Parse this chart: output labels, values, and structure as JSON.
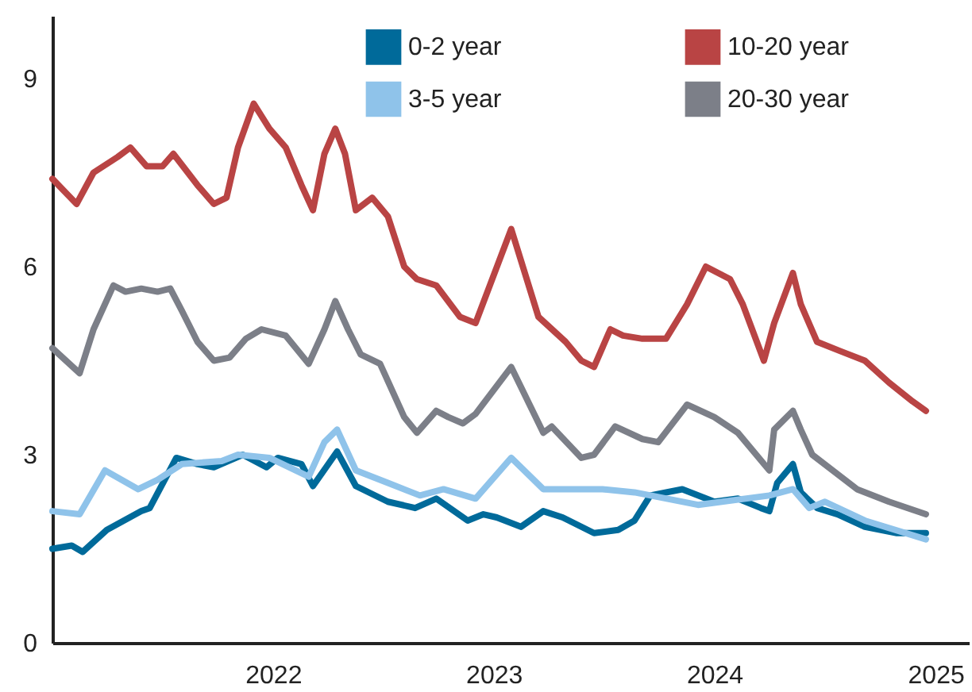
{
  "chart_data": {
    "type": "line",
    "xlim": [
      "2021-01-01",
      "2025-02-25"
    ],
    "xticks": [
      "2022",
      "2023",
      "2024",
      "2025"
    ],
    "ylim": [
      0,
      10
    ],
    "yticks": [
      0,
      3,
      6,
      9
    ],
    "grid": false,
    "legend": "top right",
    "marker": "none",
    "line_style": "solid",
    "series": [
      {
        "name": "0-2 year",
        "color": "#006a9a",
        "x": [
          "2021-01-01",
          "2021-02-02",
          "2021-02-20",
          "2021-04-01",
          "2021-05-28",
          "2021-06-11",
          "2021-07-25",
          "2021-08-29",
          "2021-09-25",
          "2021-11-12",
          "2021-12-21",
          "2022-01-09",
          "2022-02-17",
          "2022-03-08",
          "2022-04-17",
          "2022-05-18",
          "2022-07-10",
          "2022-08-24",
          "2022-09-28",
          "2022-11-19",
          "2022-12-15",
          "2023-01-06",
          "2023-02-15",
          "2023-03-24",
          "2023-04-25",
          "2023-06-16",
          "2023-07-26",
          "2023-08-22",
          "2023-09-17",
          "2023-11-09",
          "2024-01-01",
          "2024-02-09",
          "2024-03-18",
          "2024-04-01",
          "2024-04-14",
          "2024-05-10",
          "2024-05-23",
          "2024-06-19",
          "2024-07-23",
          "2024-09-06",
          "2024-10-29",
          "2024-12-16"
        ],
        "values": [
          1.5,
          1.55,
          1.45,
          1.8,
          2.1,
          2.15,
          2.95,
          2.85,
          2.8,
          3.0,
          2.8,
          2.95,
          2.85,
          2.5,
          3.05,
          2.5,
          2.25,
          2.15,
          2.3,
          1.95,
          2.05,
          2.0,
          1.85,
          2.1,
          2.0,
          1.75,
          1.8,
          1.95,
          2.35,
          2.45,
          2.25,
          2.3,
          2.15,
          2.1,
          2.55,
          2.85,
          2.4,
          2.15,
          2.05,
          1.85,
          1.75,
          1.75
        ]
      },
      {
        "name": "3-5 year",
        "color": "#8fc3ea",
        "x": [
          "2021-01-01",
          "2021-02-15",
          "2021-03-29",
          "2021-05-23",
          "2021-06-24",
          "2021-08-03",
          "2021-10-08",
          "2021-11-04",
          "2021-12-26",
          "2022-03-01",
          "2022-03-27",
          "2022-04-17",
          "2022-05-18",
          "2022-07-10",
          "2022-09-01",
          "2022-10-10",
          "2022-12-02",
          "2023-01-30",
          "2023-03-24",
          "2023-06-30",
          "2023-08-22",
          "2023-12-05",
          "2024-04-01",
          "2024-05-10",
          "2024-06-06",
          "2024-07-02",
          "2024-09-06",
          "2024-12-16"
        ],
        "values": [
          2.1,
          2.05,
          2.75,
          2.45,
          2.6,
          2.85,
          2.9,
          3.0,
          2.95,
          2.65,
          3.2,
          3.4,
          2.75,
          2.55,
          2.35,
          2.45,
          2.3,
          2.95,
          2.45,
          2.45,
          2.4,
          2.2,
          2.35,
          2.45,
          2.15,
          2.25,
          1.95,
          1.65
        ]
      },
      {
        "name": "10-20 year",
        "color": "#b94444",
        "x": [
          "2021-01-01",
          "2021-02-10",
          "2021-03-10",
          "2021-04-19",
          "2021-05-10",
          "2021-06-06",
          "2021-07-02",
          "2021-07-20",
          "2021-08-29",
          "2021-09-25",
          "2021-10-16",
          "2021-11-04",
          "2021-11-30",
          "2021-12-26",
          "2022-01-22",
          "2022-02-17",
          "2022-03-08",
          "2022-03-27",
          "2022-04-14",
          "2022-04-30",
          "2022-05-18",
          "2022-06-14",
          "2022-07-10",
          "2022-08-06",
          "2022-08-27",
          "2022-09-28",
          "2022-11-06",
          "2022-12-02",
          "2023-01-30",
          "2023-03-16",
          "2023-04-30",
          "2023-05-26",
          "2023-06-16",
          "2023-07-13",
          "2023-08-03",
          "2023-09-04",
          "2023-10-13",
          "2023-11-17",
          "2023-12-18",
          "2024-01-27",
          "2024-02-17",
          "2024-03-23",
          "2024-04-09",
          "2024-05-10",
          "2024-05-23",
          "2024-06-19",
          "2024-07-28",
          "2024-09-06",
          "2024-10-16",
          "2024-11-24",
          "2024-12-16"
        ],
        "values": [
          7.4,
          7.0,
          7.5,
          7.75,
          7.9,
          7.6,
          7.6,
          7.8,
          7.3,
          7.0,
          7.1,
          7.9,
          8.6,
          8.2,
          7.9,
          7.3,
          6.9,
          7.8,
          8.2,
          7.8,
          6.9,
          7.1,
          6.8,
          6.0,
          5.8,
          5.7,
          5.2,
          5.1,
          6.6,
          5.2,
          4.8,
          4.5,
          4.4,
          5.0,
          4.9,
          4.85,
          4.85,
          5.4,
          6.0,
          5.8,
          5.4,
          4.5,
          5.1,
          5.9,
          5.4,
          4.8,
          4.65,
          4.5,
          4.15,
          3.85,
          3.7
        ]
      },
      {
        "name": "20-30 year",
        "color": "#7c7f88",
        "x": [
          "2021-01-01",
          "2021-02-15",
          "2021-03-10",
          "2021-04-12",
          "2021-05-02",
          "2021-05-28",
          "2021-06-24",
          "2021-07-15",
          "2021-08-03",
          "2021-08-29",
          "2021-09-25",
          "2021-10-21",
          "2021-11-17",
          "2021-12-13",
          "2022-01-22",
          "2022-03-01",
          "2022-03-27",
          "2022-04-14",
          "2022-05-05",
          "2022-05-26",
          "2022-06-27",
          "2022-08-06",
          "2022-08-27",
          "2022-09-28",
          "2022-10-18",
          "2022-11-11",
          "2022-12-02",
          "2023-01-30",
          "2023-03-24",
          "2023-04-07",
          "2023-05-26",
          "2023-06-16",
          "2023-07-21",
          "2023-09-04",
          "2023-09-30",
          "2023-11-17",
          "2024-01-01",
          "2024-02-09",
          "2024-04-01",
          "2024-04-09",
          "2024-05-10",
          "2024-05-23",
          "2024-06-11",
          "2024-08-24",
          "2024-10-16",
          "2024-12-16"
        ],
        "values": [
          4.7,
          4.3,
          5.0,
          5.7,
          5.6,
          5.65,
          5.6,
          5.65,
          5.3,
          4.8,
          4.5,
          4.55,
          4.85,
          5.0,
          4.9,
          4.45,
          5.0,
          5.45,
          5.0,
          4.6,
          4.45,
          3.6,
          3.35,
          3.7,
          3.6,
          3.5,
          3.65,
          4.4,
          3.35,
          3.45,
          2.95,
          3.0,
          3.45,
          3.25,
          3.2,
          3.8,
          3.6,
          3.35,
          2.75,
          3.4,
          3.7,
          3.4,
          3.0,
          2.45,
          2.25,
          2.05
        ]
      }
    ]
  }
}
